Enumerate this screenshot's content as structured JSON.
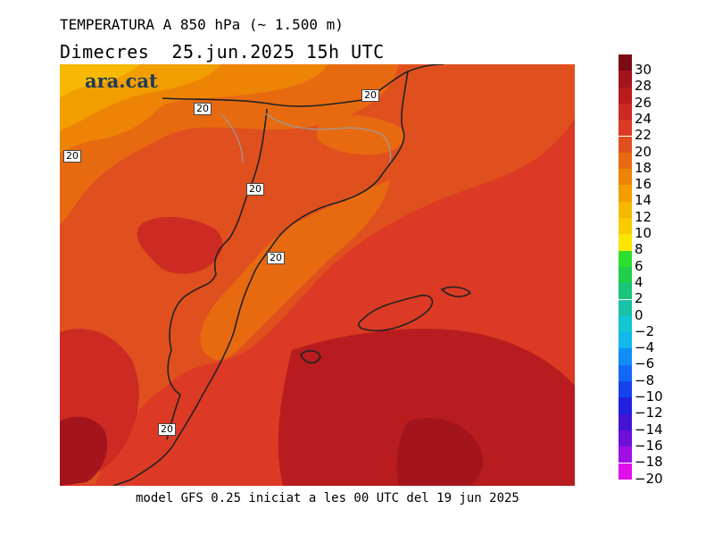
{
  "header": {
    "title": "TEMPERATURA A 850 hPa (~ 1.500 m)",
    "subtitle": "Dimecres  25.jun.2025 15h UTC"
  },
  "footer": {
    "model_note": "model GFS 0.25 iniciat a les 00 UTC del 19 jun 2025"
  },
  "map": {
    "logo_text": "ara.cat",
    "contour_label": "20",
    "contour_labels": [
      "20",
      "20",
      "20",
      "20",
      "20",
      "20"
    ]
  },
  "legend": {
    "ticks": [
      "30",
      "28",
      "26",
      "24",
      "22",
      "20",
      "18",
      "16",
      "14",
      "12",
      "10",
      "8",
      "6",
      "4",
      "2",
      "0",
      "−2",
      "−4",
      "−6",
      "−8",
      "−10",
      "−12",
      "−14",
      "−16",
      "−18",
      "−20"
    ],
    "colors": [
      "#7a0a14",
      "#a3141c",
      "#b81c1e",
      "#cc2a22",
      "#dc3a24",
      "#e0501e",
      "#e86a10",
      "#ee8406",
      "#f29e00",
      "#f6b800",
      "#f8cc00",
      "#fae600",
      "#2fdf2f",
      "#1fcf4a",
      "#1ac47a",
      "#18c2a6",
      "#10c8d2",
      "#10b8ec",
      "#108ef6",
      "#1268f6",
      "#1642ec",
      "#2220e0",
      "#4414d4",
      "#6e10d8",
      "#a010e6",
      "#e010e8"
    ]
  },
  "colors": {
    "c16": "#ee8406",
    "c14": "#f29e00",
    "c18": "#e86a10",
    "c20": "#e0501e",
    "c22": "#dc3a24",
    "c24": "#cc2a22",
    "c26": "#b81c1e",
    "c28": "#a3141c"
  }
}
